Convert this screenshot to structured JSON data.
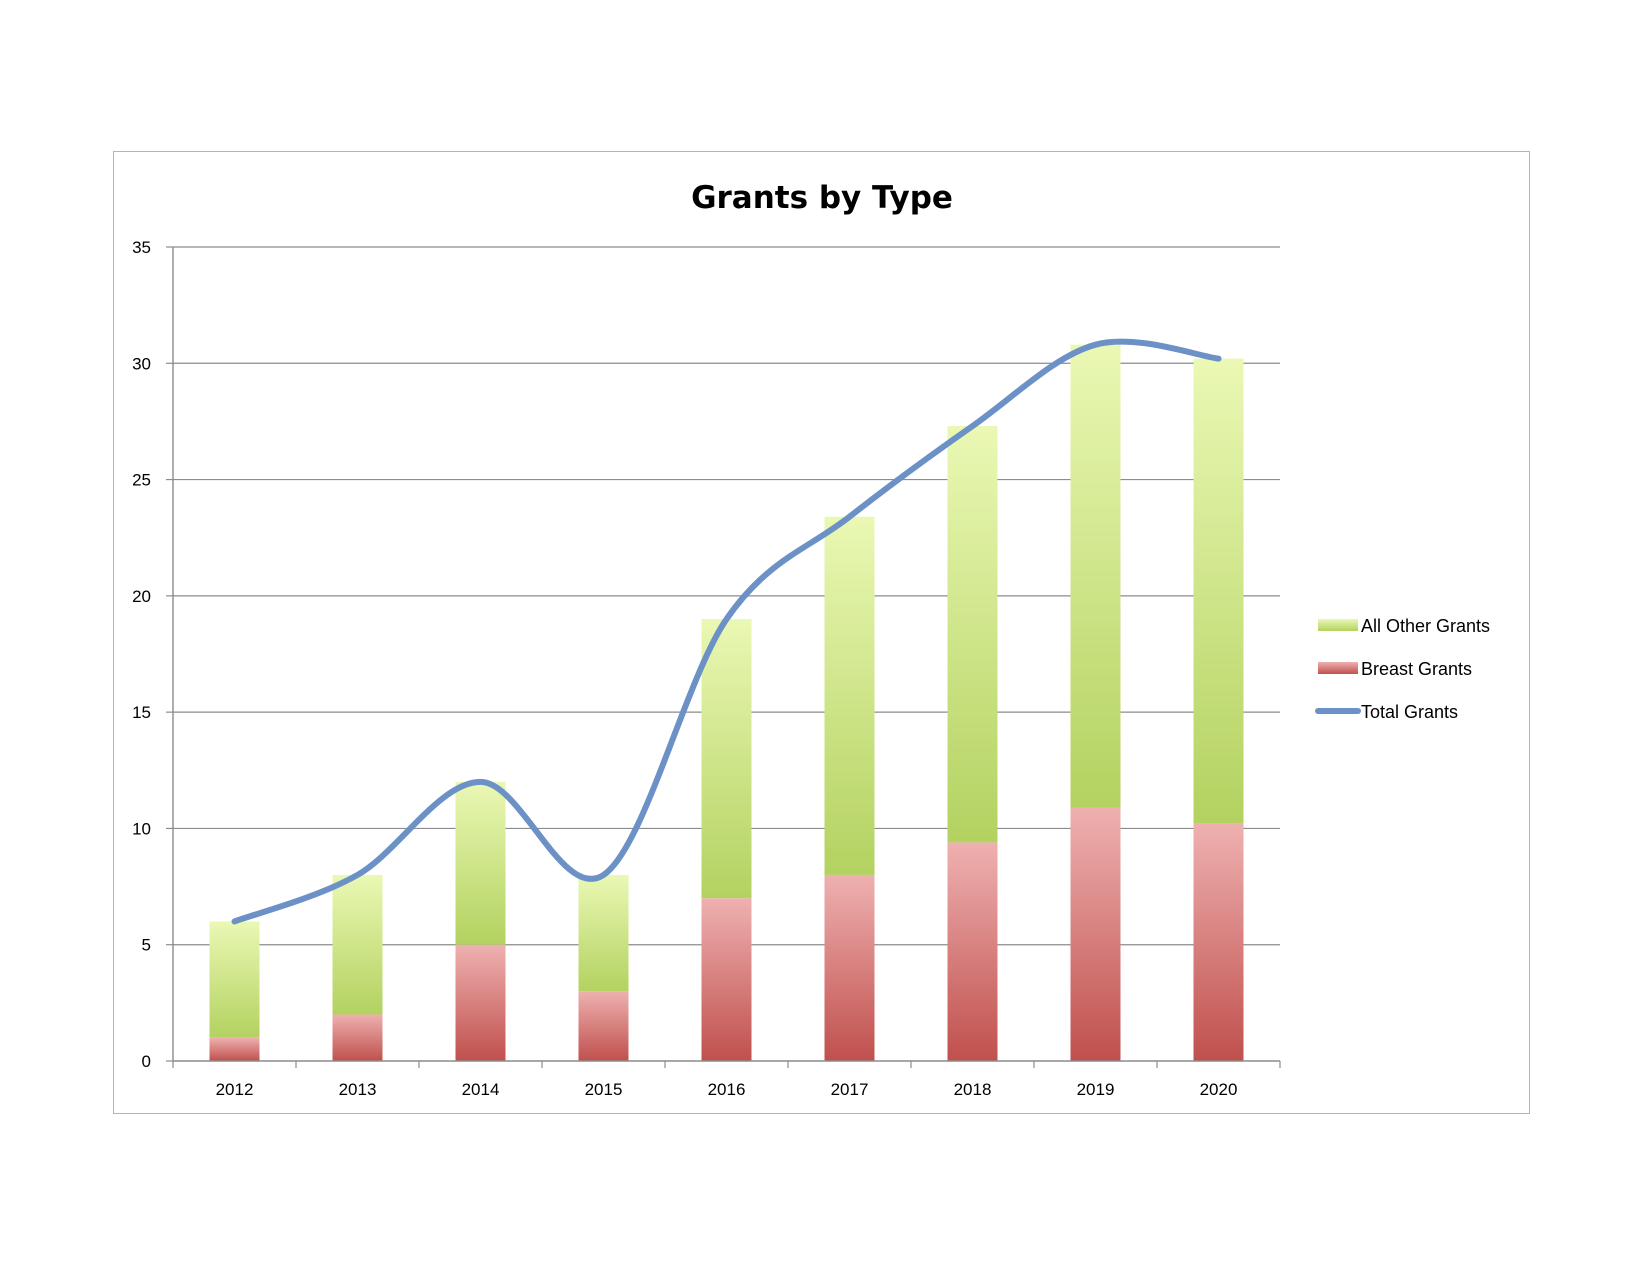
{
  "chart_data": {
    "type": "bar",
    "stacked": true,
    "title": "Grants by Type",
    "xlabel": "",
    "ylabel": "",
    "categories": [
      "2012",
      "2013",
      "2014",
      "2015",
      "2016",
      "2017",
      "2018",
      "2019",
      "2020"
    ],
    "series": [
      {
        "name": "Breast Grants",
        "type": "bar",
        "values": [
          1,
          2,
          5,
          3,
          7,
          8,
          9.4,
          10.9,
          10.2
        ],
        "color_top": "#eeb1b0",
        "color_bottom": "#c0504d"
      },
      {
        "name": "All Other Grants",
        "type": "bar",
        "values": [
          5,
          6,
          7,
          5,
          12,
          15.4,
          17.9,
          19.9,
          20
        ],
        "color_top": "#eaf8b4",
        "color_bottom": "#b3d260"
      },
      {
        "name": "Total Grants",
        "type": "line",
        "smooth": true,
        "values": [
          6,
          8,
          12,
          8,
          19,
          23.4,
          27.3,
          30.8,
          30.2
        ],
        "color": "#6b91c6"
      }
    ],
    "ylim": [
      0,
      35
    ],
    "yticks": [
      "0",
      "5",
      "10",
      "15",
      "20",
      "25",
      "30",
      "35"
    ],
    "grid": true,
    "legend": {
      "position": "right",
      "items": [
        "All Other Grants",
        "Breast Grants",
        "Total Grants"
      ]
    }
  }
}
